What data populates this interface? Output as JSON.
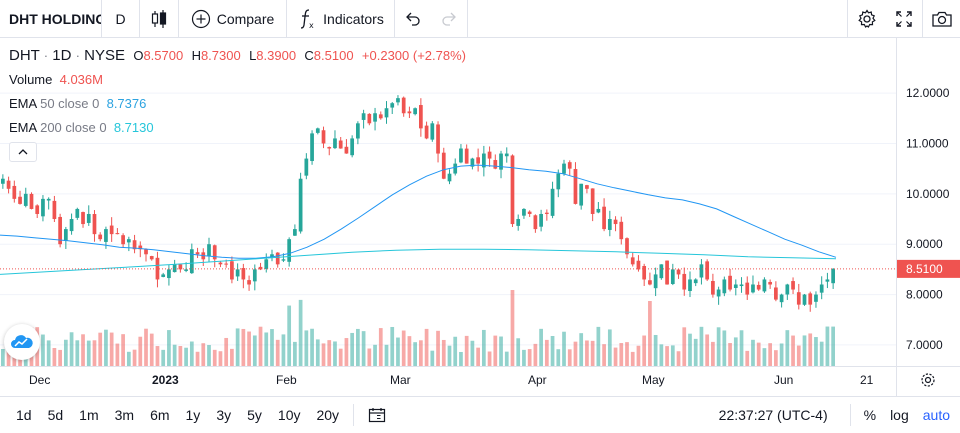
{
  "toolbar": {
    "symbol": "DHT HOLDINGS",
    "interval": "D",
    "compare_label": "Compare",
    "indicators_label": "Indicators"
  },
  "legend": {
    "ticker": "DHT",
    "sep1": "·",
    "interval": "1D",
    "sep2": "·",
    "exchange": "NYSE",
    "o_label": "O",
    "o_value": "8.5700",
    "h_label": "H",
    "h_value": "8.7300",
    "l_label": "L",
    "l_value": "8.3900",
    "c_label": "C",
    "c_value": "8.5100",
    "change": "+0.2300 (+2.78%)",
    "volume_label": "Volume",
    "volume_value": "4.036M",
    "ema50_label": "EMA",
    "ema50_params": "50 close 0",
    "ema50_value": "8.7376",
    "ema200_label": "EMA",
    "ema200_params": "200 close 0",
    "ema200_value": "8.7130"
  },
  "price_axis": {
    "ticks": [
      "12.0000",
      "11.0000",
      "10.0000",
      "9.0000",
      "8.0000",
      "7.0000"
    ],
    "last_price": "8.5100"
  },
  "time_axis": {
    "labels": [
      "Dec",
      "2023",
      "Feb",
      "Mar",
      "Apr",
      "May",
      "Jun",
      "21"
    ]
  },
  "bottom": {
    "ranges": [
      "1d",
      "5d",
      "1m",
      "3m",
      "6m",
      "1y",
      "3y",
      "5y",
      "10y",
      "20y"
    ],
    "time": "22:37:27 (UTC-4)",
    "percent": "%",
    "log": "log",
    "auto": "auto"
  },
  "colors": {
    "up": "#26a69a",
    "down": "#ef5350",
    "ema50": "#2196f3",
    "ema200": "#26c6da",
    "accent": "#2962ff"
  },
  "chart_data": {
    "type": "candlestick",
    "ylim": [
      6.8,
      12.3
    ],
    "y_ticks": [
      12.0,
      11.0,
      10.0,
      9.0,
      8.0,
      7.0
    ],
    "x_labels": [
      "Dec",
      "2023",
      "Feb",
      "Mar",
      "Apr",
      "May",
      "Jun",
      "21"
    ],
    "closes": [
      10.3,
      10.1,
      9.9,
      9.8,
      10.0,
      9.7,
      9.6,
      9.9,
      9.9,
      9.5,
      9.0,
      9.3,
      9.5,
      9.7,
      9.4,
      9.6,
      9.2,
      9.1,
      9.3,
      9.2,
      9.2,
      9.0,
      9.1,
      8.9,
      8.9,
      8.8,
      8.7,
      8.3,
      8.4,
      8.5,
      8.6,
      8.5,
      8.5,
      8.9,
      8.8,
      8.7,
      9.0,
      8.7,
      8.6,
      8.6,
      8.3,
      8.5,
      8.3,
      8.2,
      8.5,
      8.5,
      8.7,
      8.8,
      8.6,
      8.7,
      9.1,
      9.3,
      10.3,
      10.7,
      11.2,
      11.3,
      11.0,
      10.9,
      11.1,
      10.9,
      10.8,
      11.1,
      11.4,
      11.6,
      11.4,
      11.6,
      11.5,
      11.7,
      11.8,
      11.9,
      11.6,
      11.6,
      11.7,
      11.3,
      11.1,
      11.4,
      10.8,
      10.3,
      10.4,
      10.6,
      10.9,
      10.6,
      10.7,
      10.6,
      10.8,
      10.7,
      10.5,
      10.8,
      10.8,
      9.4,
      9.5,
      9.7,
      9.6,
      9.3,
      9.6,
      9.6,
      10.1,
      10.4,
      10.6,
      10.5,
      9.8,
      10.2,
      10.1,
      9.6,
      9.7,
      9.3,
      9.5,
      9.4,
      9.1,
      8.8,
      8.6,
      8.5,
      8.3,
      8.2,
      8.4,
      8.6,
      8.2,
      8.5,
      8.4,
      8.1,
      8.3,
      8.3,
      8.6,
      8.3,
      8.0,
      8.1,
      8.3,
      8.1,
      8.2,
      8.2,
      8.0,
      8.2,
      8.1,
      8.3,
      8.2,
      7.9,
      8.0,
      8.2,
      8.1,
      7.8,
      8.0,
      7.8,
      8.0,
      8.2,
      8.3,
      8.51
    ],
    "ema50": [
      9.18,
      9.16,
      9.13,
      9.1,
      9.07,
      9.03,
      8.99,
      8.94,
      8.92,
      8.89,
      8.85,
      8.81,
      8.77,
      8.74,
      8.72,
      8.72,
      8.75,
      8.82,
      8.94,
      9.1,
      9.3,
      9.52,
      9.75,
      9.98,
      10.18,
      10.35,
      10.48,
      10.55,
      10.57,
      10.55,
      10.52,
      10.48,
      10.45,
      10.4,
      10.3,
      10.2,
      10.12,
      10.05,
      9.98,
      9.92,
      9.88,
      9.8,
      9.7,
      9.55,
      9.4,
      9.25,
      9.1,
      8.98,
      8.85,
      8.74
    ],
    "ema200": [
      8.4,
      8.45,
      8.5,
      8.55,
      8.6,
      8.66,
      8.72,
      8.78,
      8.84,
      8.88,
      8.9,
      8.9,
      8.89,
      8.87,
      8.85,
      8.82,
      8.79,
      8.75,
      8.73,
      8.71
    ],
    "volume_relative": "bars scaled to max"
  }
}
